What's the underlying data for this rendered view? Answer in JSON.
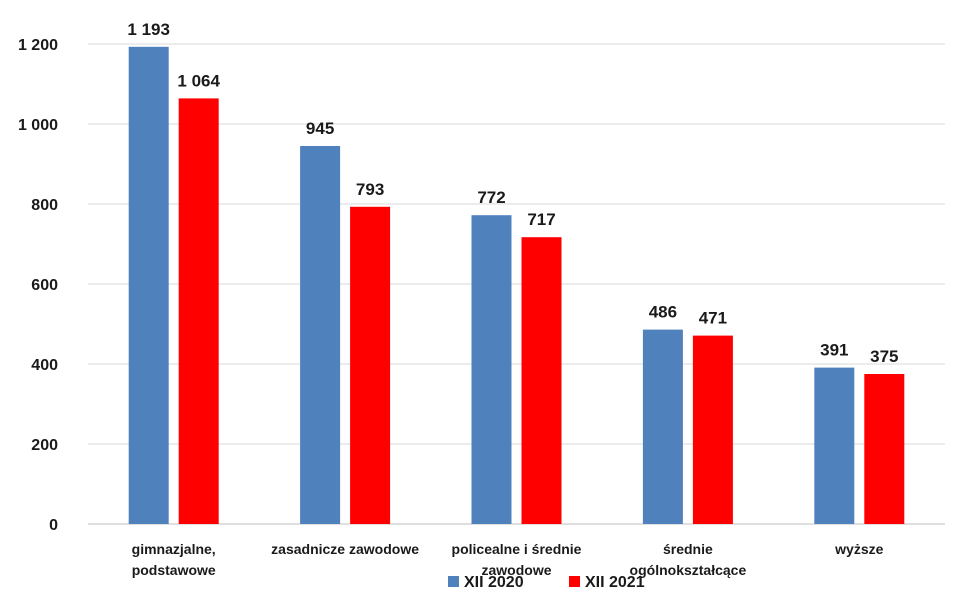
{
  "chart_data": {
    "type": "bar",
    "title": "",
    "xlabel": "",
    "ylabel": "",
    "categories": [
      [
        "gimnazjalne,",
        "podstawowe"
      ],
      [
        "zasadnicze zawodowe"
      ],
      [
        "policealne i średnie",
        "zawodowe"
      ],
      [
        "średnie",
        "ogólnokształcące"
      ],
      [
        "wyższe"
      ]
    ],
    "series": [
      {
        "name": "XII 2020",
        "color": "#4F81BD",
        "values": [
          1193,
          945,
          772,
          486,
          391
        ]
      },
      {
        "name": "XII 2021",
        "color": "#FF0000",
        "values": [
          1064,
          793,
          717,
          471,
          375
        ]
      }
    ],
    "ylim": [
      0,
      1200
    ],
    "yticks": [
      0,
      200,
      400,
      600,
      800,
      1000,
      1200
    ],
    "ytick_labels": [
      "0",
      "200",
      "400",
      "600",
      "800",
      "1 000",
      "1 200"
    ],
    "data_labels": [
      [
        "1 193",
        "945",
        "772",
        "486",
        "391"
      ],
      [
        "1 064",
        "793",
        "717",
        "471",
        "375"
      ]
    ],
    "grid": true,
    "legend_position": "bottom"
  }
}
